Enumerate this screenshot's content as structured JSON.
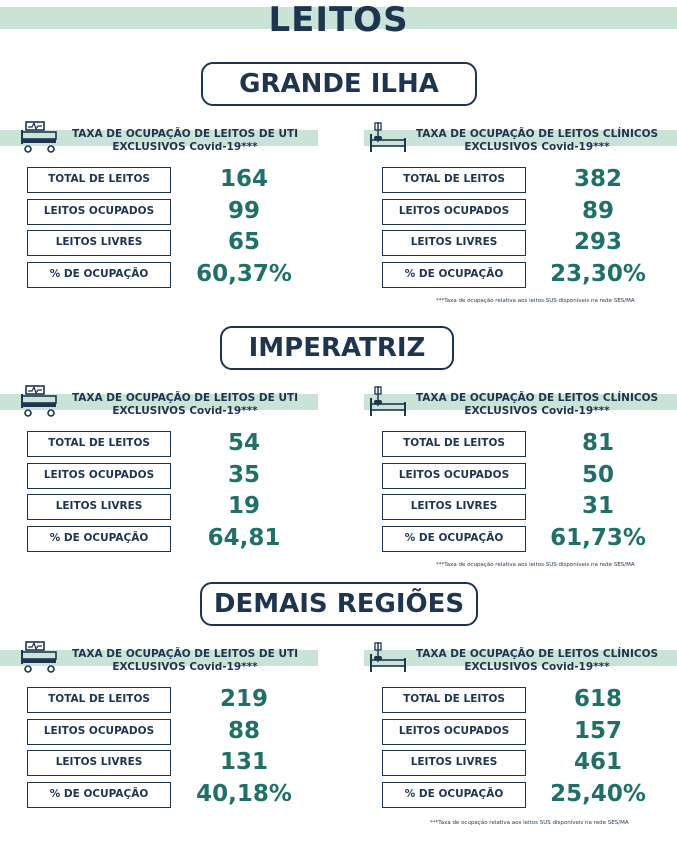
{
  "title": "LEITOS",
  "labels": [
    "TOTAL DE LEITOS",
    "LEITOS OCUPADOS",
    "LEITOS LIVRES",
    "% DE OCUPAÇÃO"
  ],
  "uti_title": [
    "TAXA DE OCUPAÇÃO DE LEITOS DE UTI",
    "EXCLUSIVOS Covid-19***"
  ],
  "clin_title": [
    "TAXA DE OCUPAÇÃO DE LEITOS CLÍNICOS",
    "EXCLUSIVOS Covid-19***"
  ],
  "note": "***Taxa de ocupação relativa aos leitos SUS disponíveis na rede SES/MA",
  "regions": [
    {
      "name": "GRANDE ILHA",
      "uti": [
        "164",
        "99",
        "65",
        "60,37%"
      ],
      "clin": [
        "382",
        "89",
        "293",
        "23,30%"
      ]
    },
    {
      "name": "IMPERATRIZ",
      "uti": [
        "54",
        "35",
        "19",
        "64,81"
      ],
      "clin": [
        "81",
        "50",
        "31",
        "61,73%"
      ]
    },
    {
      "name": "DEMAIS REGIÕES",
      "uti": [
        "219",
        "88",
        "131",
        "40,18%"
      ],
      "clin": [
        "618",
        "157",
        "461",
        "25,40%"
      ]
    }
  ],
  "icons": {
    "uti": "icu-bed-icon",
    "clinical": "hospital-bed-icon"
  }
}
